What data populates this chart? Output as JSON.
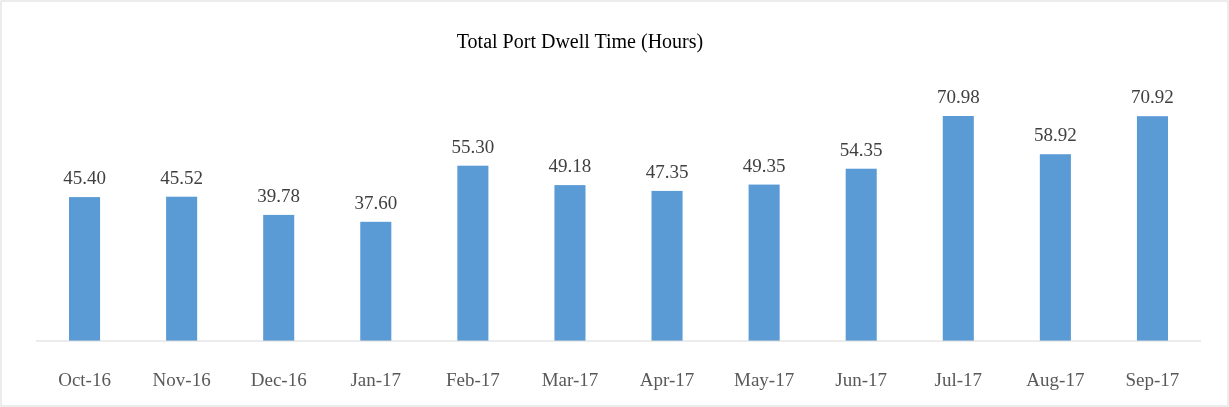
{
  "chart_data": {
    "type": "bar",
    "title": "Total Port Dwell Time (Hours)",
    "categories": [
      "Oct-16",
      "Nov-16",
      "Dec-16",
      "Jan-17",
      "Feb-17",
      "Mar-17",
      "Apr-17",
      "May-17",
      "Jun-17",
      "Jul-17",
      "Aug-17",
      "Sep-17"
    ],
    "values": [
      45.4,
      45.52,
      39.78,
      37.6,
      55.3,
      49.18,
      47.35,
      49.35,
      54.35,
      70.98,
      58.92,
      70.92
    ],
    "value_labels": [
      "45.40",
      "45.52",
      "39.78",
      "37.60",
      "55.30",
      "49.18",
      "47.35",
      "49.35",
      "54.35",
      "70.98",
      "58.92",
      "70.92"
    ],
    "color": "#5b9bd5"
  }
}
